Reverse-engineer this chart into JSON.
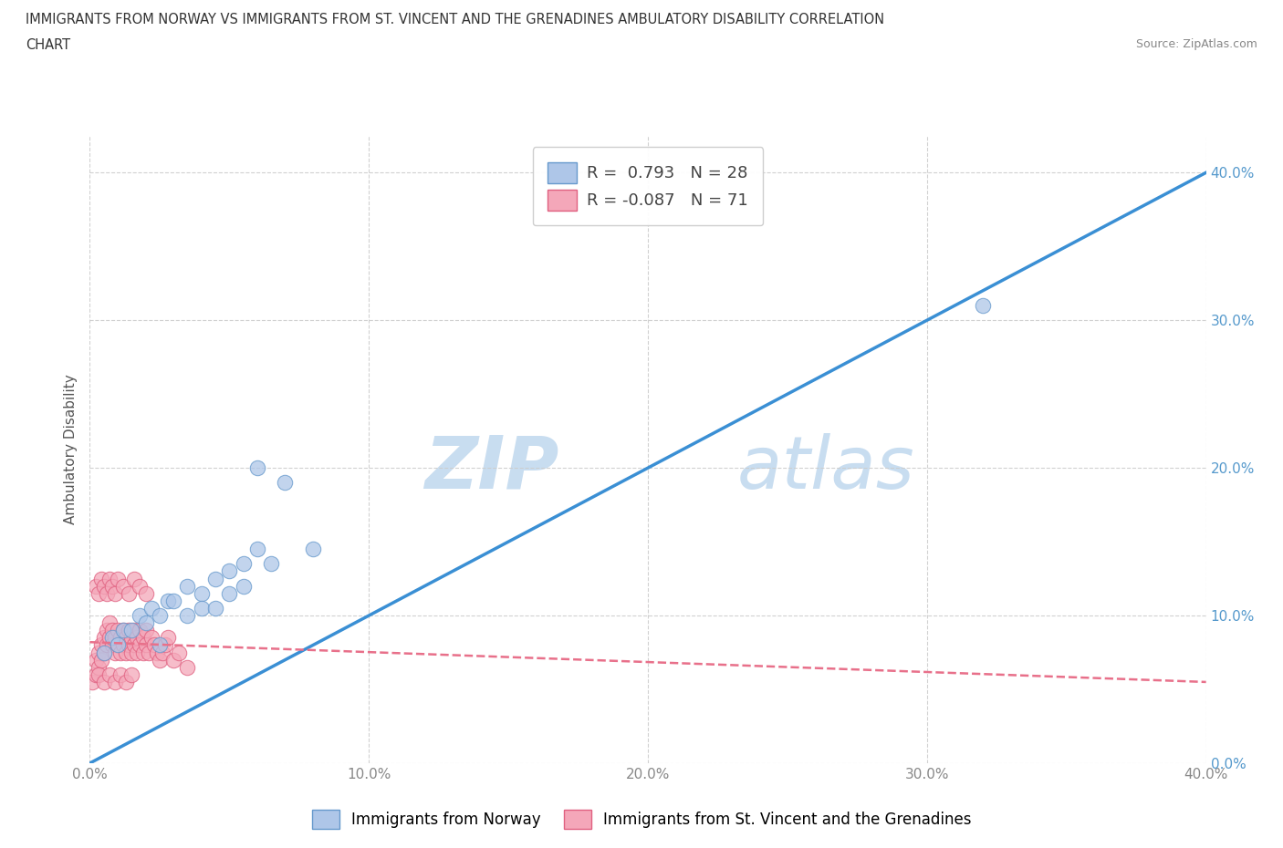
{
  "title_line1": "IMMIGRANTS FROM NORWAY VS IMMIGRANTS FROM ST. VINCENT AND THE GRENADINES AMBULATORY DISABILITY CORRELATION",
  "title_line2": "CHART",
  "source_text": "Source: ZipAtlas.com",
  "ylabel": "Ambulatory Disability",
  "xmin": 0.0,
  "xmax": 0.4,
  "ymin": 0.0,
  "ymax": 0.425,
  "yticks": [
    0.0,
    0.1,
    0.2,
    0.3,
    0.4
  ],
  "ytick_labels": [
    "0.0%",
    "10.0%",
    "20.0%",
    "30.0%",
    "40.0%"
  ],
  "xticks": [
    0.0,
    0.1,
    0.2,
    0.3,
    0.4
  ],
  "xtick_labels": [
    "0.0%",
    "10.0%",
    "20.0%",
    "30.0%",
    "40.0%"
  ],
  "norway_color": "#aec6e8",
  "norway_edge": "#6699cc",
  "stv_color": "#f4a7b9",
  "stv_edge": "#e06080",
  "norway_R": 0.793,
  "norway_N": 28,
  "stv_R": -0.087,
  "stv_N": 71,
  "norway_line_color": "#3a8fd4",
  "stv_line_color": "#e8708a",
  "watermark_zip": "ZIP",
  "watermark_atlas": "atlas",
  "watermark_color": "#c8ddf0",
  "legend_norway_label": "Immigrants from Norway",
  "legend_stv_label": "Immigrants from St. Vincent and the Grenadines",
  "norway_line_x": [
    0.0,
    0.4
  ],
  "norway_line_y": [
    0.0,
    0.4
  ],
  "stv_line_x": [
    0.0,
    0.4
  ],
  "stv_line_y": [
    0.082,
    0.055
  ],
  "norway_scatter_x": [
    0.005,
    0.008,
    0.01,
    0.012,
    0.015,
    0.018,
    0.02,
    0.022,
    0.025,
    0.028,
    0.03,
    0.035,
    0.04,
    0.045,
    0.05,
    0.055,
    0.06,
    0.07,
    0.08,
    0.035,
    0.04,
    0.05,
    0.055,
    0.06,
    0.065,
    0.32,
    0.025,
    0.045
  ],
  "norway_scatter_y": [
    0.075,
    0.085,
    0.08,
    0.09,
    0.09,
    0.1,
    0.095,
    0.105,
    0.1,
    0.11,
    0.11,
    0.12,
    0.115,
    0.125,
    0.13,
    0.135,
    0.145,
    0.19,
    0.145,
    0.1,
    0.105,
    0.115,
    0.12,
    0.2,
    0.135,
    0.31,
    0.08,
    0.105
  ],
  "stv_scatter_x": [
    0.001,
    0.002,
    0.002,
    0.003,
    0.003,
    0.004,
    0.004,
    0.005,
    0.005,
    0.006,
    0.006,
    0.007,
    0.007,
    0.008,
    0.008,
    0.009,
    0.009,
    0.01,
    0.01,
    0.011,
    0.011,
    0.012,
    0.012,
    0.013,
    0.013,
    0.014,
    0.014,
    0.015,
    0.015,
    0.016,
    0.016,
    0.017,
    0.017,
    0.018,
    0.018,
    0.019,
    0.019,
    0.02,
    0.02,
    0.021,
    0.022,
    0.023,
    0.024,
    0.025,
    0.026,
    0.027,
    0.028,
    0.03,
    0.032,
    0.035,
    0.002,
    0.003,
    0.004,
    0.005,
    0.006,
    0.007,
    0.008,
    0.009,
    0.01,
    0.012,
    0.014,
    0.016,
    0.018,
    0.02,
    0.003,
    0.005,
    0.007,
    0.009,
    0.011,
    0.013,
    0.015
  ],
  "stv_scatter_y": [
    0.055,
    0.06,
    0.07,
    0.065,
    0.075,
    0.07,
    0.08,
    0.075,
    0.085,
    0.08,
    0.09,
    0.085,
    0.095,
    0.08,
    0.09,
    0.075,
    0.085,
    0.08,
    0.09,
    0.075,
    0.085,
    0.08,
    0.09,
    0.075,
    0.085,
    0.08,
    0.09,
    0.075,
    0.085,
    0.08,
    0.09,
    0.075,
    0.085,
    0.08,
    0.09,
    0.075,
    0.085,
    0.08,
    0.09,
    0.075,
    0.085,
    0.08,
    0.075,
    0.07,
    0.075,
    0.08,
    0.085,
    0.07,
    0.075,
    0.065,
    0.12,
    0.115,
    0.125,
    0.12,
    0.115,
    0.125,
    0.12,
    0.115,
    0.125,
    0.12,
    0.115,
    0.125,
    0.12,
    0.115,
    0.06,
    0.055,
    0.06,
    0.055,
    0.06,
    0.055,
    0.06
  ]
}
